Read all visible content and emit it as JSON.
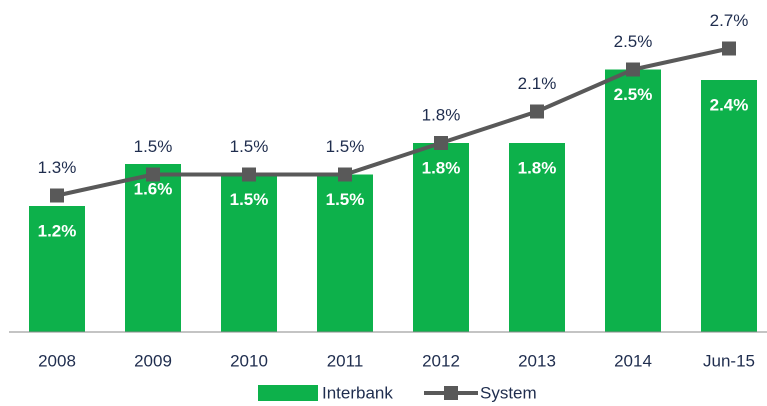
{
  "chart_data": {
    "type": "bar+line",
    "categories": [
      "2008",
      "2009",
      "2010",
      "2011",
      "2012",
      "2013",
      "2014",
      "Jun-15"
    ],
    "series": [
      {
        "name": "Interbank",
        "type": "bar",
        "color": "#0db14b",
        "values": [
          1.2,
          1.6,
          1.5,
          1.5,
          1.8,
          1.8,
          2.5,
          2.4
        ],
        "value_labels": [
          "1.2%",
          "1.6%",
          "1.5%",
          "1.5%",
          "1.8%",
          "1.8%",
          "2.5%",
          "2.4%"
        ]
      },
      {
        "name": "System",
        "type": "line",
        "color": "#595959",
        "values": [
          1.3,
          1.5,
          1.5,
          1.5,
          1.8,
          2.1,
          2.5,
          2.7
        ],
        "value_labels": [
          "1.3%",
          "1.5%",
          "1.5%",
          "1.5%",
          "1.8%",
          "2.1%",
          "2.5%",
          "2.7%"
        ]
      }
    ],
    "ylim": [
      0,
      3
    ],
    "legend": "bottom"
  }
}
